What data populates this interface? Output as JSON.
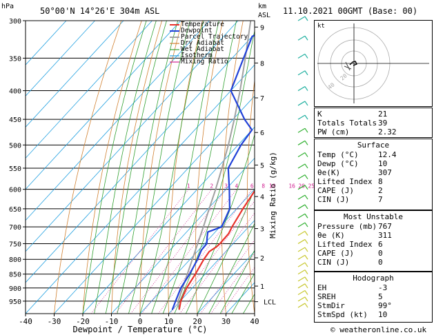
{
  "header": {
    "location": "50°00'N  14°26'E  304m  ASL",
    "datetime": "11.10.2021  00GMT  (Base: 00)",
    "hpa_unit": "hPa",
    "km_unit": "km",
    "asl_unit": "ASL"
  },
  "legend": {
    "items": [
      {
        "label": "Temperature",
        "color": "#e8302a"
      },
      {
        "label": "Dewpoint",
        "color": "#2040d8"
      },
      {
        "label": "Parcel Trajectory",
        "color": "#a0a0a0"
      },
      {
        "label": "Dry Adiabat",
        "color": "#d08030"
      },
      {
        "label": "Wet Adiabat",
        "color": "#30a030"
      },
      {
        "label": "Isotherm",
        "color": "#20a0e0"
      },
      {
        "label": "Mixing Ratio",
        "color": "#d02090"
      }
    ]
  },
  "chart_data": {
    "type": "skew-t",
    "xlabel": "Dewpoint / Temperature (°C)",
    "ylabel": "hPa",
    "right_axis_label": "Mixing Ratio (g/kg)",
    "xlim": [
      -40,
      40
    ],
    "ylim": [
      300,
      1000
    ],
    "x_ticks": [
      "-40",
      "-30",
      "-20",
      "-10",
      "0",
      "10",
      "20",
      "30",
      "40"
    ],
    "pressure_levels": [
      "300",
      "350",
      "400",
      "450",
      "500",
      "550",
      "600",
      "650",
      "700",
      "750",
      "800",
      "850",
      "900",
      "950"
    ],
    "km_ticks": [
      {
        "label": "9",
        "p": 308
      },
      {
        "label": "8",
        "p": 357
      },
      {
        "label": "7",
        "p": 412
      },
      {
        "label": "6",
        "p": 475
      },
      {
        "label": "5",
        "p": 543
      },
      {
        "label": "4",
        "p": 618
      },
      {
        "label": "3",
        "p": 705
      },
      {
        "label": "2",
        "p": 795
      },
      {
        "label": "1",
        "p": 893
      }
    ],
    "lcl_label": "LCL",
    "lcl_p": 952,
    "mixing_ratio_labels": [
      "1",
      "2",
      "3",
      "4",
      "6",
      "8",
      "10",
      "16",
      "20",
      "25"
    ],
    "mixing_ratios": [
      1,
      2,
      3,
      4,
      6,
      8,
      10,
      16,
      20,
      25
    ],
    "series": [
      {
        "name": "Temperature",
        "color": "#e8302a",
        "points": [
          [
            984,
            12.4
          ],
          [
            950,
            10.2
          ],
          [
            900,
            8.0
          ],
          [
            850,
            6.6
          ],
          [
            800,
            4.8
          ],
          [
            775,
            4.2
          ],
          [
            760,
            5.2
          ],
          [
            750,
            5.4
          ],
          [
            720,
            5.2
          ],
          [
            700,
            4.2
          ],
          [
            650,
            2.2
          ],
          [
            600,
            0.4
          ],
          [
            550,
            -3.2
          ],
          [
            500,
            -7.6
          ],
          [
            450,
            -12.6
          ],
          [
            400,
            -18.8
          ],
          [
            350,
            -26.6
          ],
          [
            300,
            -35.8
          ]
        ]
      },
      {
        "name": "Dewpoint",
        "color": "#2040d8",
        "points": [
          [
            984,
            10.0
          ],
          [
            950,
            8.4
          ],
          [
            900,
            6.0
          ],
          [
            850,
            4.6
          ],
          [
            800,
            2.6
          ],
          [
            770,
            1.0
          ],
          [
            750,
            0.8
          ],
          [
            730,
            -1.2
          ],
          [
            715,
            -2.6
          ],
          [
            700,
            0.6
          ],
          [
            650,
            -2.4
          ],
          [
            600,
            -8.8
          ],
          [
            550,
            -16.0
          ],
          [
            500,
            -19.0
          ],
          [
            470,
            -20.0
          ],
          [
            450,
            -26.0
          ],
          [
            400,
            -40.0
          ],
          [
            350,
            -46.0
          ],
          [
            320,
            -50.0
          ],
          [
            305,
            -45.0
          ],
          [
            300,
            -43.0
          ]
        ]
      },
      {
        "name": "Parcel Trajectory",
        "color": "#a0a0a0",
        "points": [
          [
            984,
            12.4
          ],
          [
            952,
            9.4
          ],
          [
            900,
            6.6
          ],
          [
            850,
            3.8
          ],
          [
            800,
            0.8
          ],
          [
            750,
            -2.4
          ],
          [
            700,
            -5.8
          ],
          [
            650,
            -9.6
          ],
          [
            600,
            -13.6
          ],
          [
            550,
            -18.2
          ],
          [
            500,
            -23.4
          ],
          [
            450,
            -29.6
          ],
          [
            400,
            -36.8
          ],
          [
            350,
            -45.4
          ],
          [
            300,
            -55.6
          ]
        ]
      }
    ],
    "hodograph": {
      "label": "kt",
      "ring_labels": [
        "20",
        "40"
      ]
    }
  },
  "indices": {
    "top": [
      {
        "label": "K",
        "value": "21"
      },
      {
        "label": "Totals Totals",
        "value": "39"
      },
      {
        "label": "PW (cm)",
        "value": "2.32"
      }
    ],
    "surface_title": "Surface",
    "surface": [
      {
        "label": "Temp (°C)",
        "value": "12.4"
      },
      {
        "label": "Dewp (°C)",
        "value": "10"
      },
      {
        "label": "θe(K)",
        "value": "307"
      },
      {
        "label": "Lifted Index",
        "value": "8"
      },
      {
        "label": "CAPE (J)",
        "value": "2"
      },
      {
        "label": "CIN (J)",
        "value": "7"
      }
    ],
    "unstable_title": "Most Unstable",
    "unstable": [
      {
        "label": "Pressure (mb)",
        "value": "767"
      },
      {
        "label": "θe (K)",
        "value": "311"
      },
      {
        "label": "Lifted Index",
        "value": "6"
      },
      {
        "label": "CAPE (J)",
        "value": "0"
      },
      {
        "label": "CIN (J)",
        "value": "0"
      }
    ],
    "hodo_title": "Hodograph",
    "hodo": [
      {
        "label": "EH",
        "value": "-3"
      },
      {
        "label": "SREH",
        "value": "5"
      },
      {
        "label": "StmDir",
        "value": "99°"
      },
      {
        "label": "StmSpd (kt)",
        "value": "10"
      }
    ]
  },
  "footer": {
    "copyright": "© weatheronline.co.uk"
  }
}
